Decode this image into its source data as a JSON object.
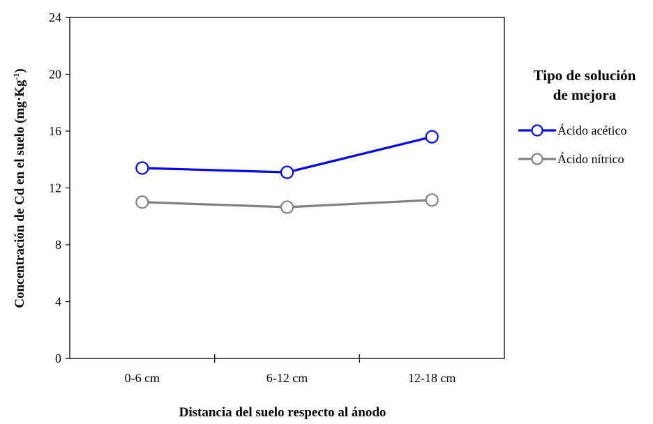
{
  "chart_data": {
    "type": "line",
    "categories": [
      "0-6 cm",
      "6-12 cm",
      "12-18 cm"
    ],
    "series": [
      {
        "name": "Ácido acético",
        "values": [
          13.4,
          13.1,
          15.6
        ],
        "color": "#0000ff"
      },
      {
        "name": "Ácido nítrico",
        "values": [
          11.0,
          10.65,
          11.15
        ],
        "color": "#808080"
      }
    ],
    "title": "",
    "xlabel": "Distancia del suelo respecto al ánodo",
    "ylabel_main": "Concentración de Cd en el suelo (mg·Kg",
    "ylabel_sup": "-1",
    "ylabel_end": ")",
    "ylim": [
      0,
      24
    ],
    "yticks": [
      "0",
      "4",
      "8",
      "12",
      "16",
      "20",
      "24"
    ],
    "grid": false,
    "legend": {
      "title_line1": "Tipo de solución",
      "title_line2": "de mejora",
      "placement": "right"
    }
  }
}
